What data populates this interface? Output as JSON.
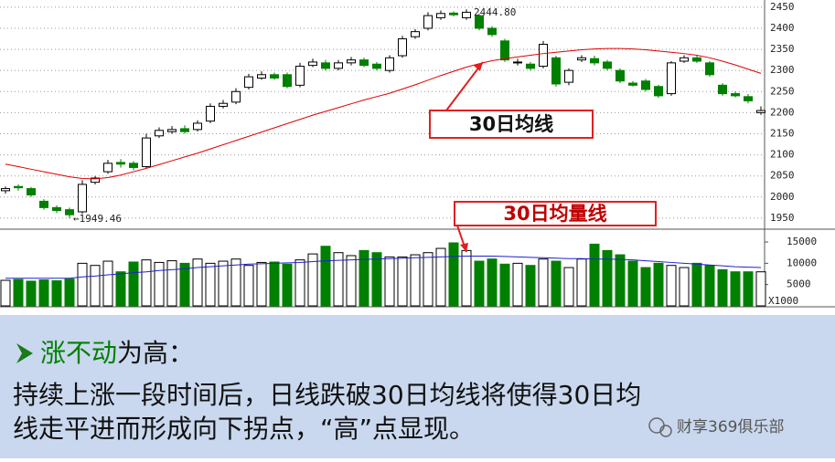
{
  "chart_data": [
    {
      "type": "candlestick",
      "ylim": [
        1926,
        2467
      ],
      "yticks": [
        1950,
        2000,
        2050,
        2100,
        2150,
        2200,
        2250,
        2300,
        2350,
        2400,
        2450
      ],
      "grid": true,
      "open": [
        2015,
        2025,
        2020,
        1990,
        1975,
        1970,
        1965,
        2035,
        2060,
        2082,
        2080,
        2072,
        2145,
        2155,
        2162,
        2160,
        2180,
        2215,
        2225,
        2260,
        2282,
        2290,
        2290,
        2265,
        2312,
        2318,
        2305,
        2318,
        2325,
        2315,
        2300,
        2335,
        2380,
        2400,
        2425,
        2436,
        2425,
        2430,
        2400,
        2370,
        2318,
        2315,
        2310,
        2330,
        2272,
        2325,
        2328,
        2320,
        2300,
        2270,
        2275,
        2262,
        2245,
        2322,
        2330,
        2318,
        2265,
        2245,
        2238,
        2200
      ],
      "high": [
        2025,
        2030,
        2024,
        1995,
        1980,
        1975,
        2040,
        2050,
        2088,
        2090,
        2085,
        2150,
        2165,
        2168,
        2170,
        2182,
        2222,
        2230,
        2258,
        2292,
        2298,
        2295,
        2295,
        2318,
        2328,
        2325,
        2325,
        2332,
        2330,
        2320,
        2336,
        2382,
        2398,
        2438,
        2442,
        2440,
        2444.8,
        2435,
        2405,
        2375,
        2328,
        2320,
        2370,
        2335,
        2305,
        2336,
        2335,
        2325,
        2305,
        2275,
        2280,
        2266,
        2322,
        2336,
        2336,
        2322,
        2270,
        2250,
        2244,
        2215
      ],
      "low": [
        2008,
        2015,
        2000,
        1970,
        1962,
        1949.46,
        1960,
        2030,
        2055,
        2070,
        2064,
        2068,
        2140,
        2150,
        2150,
        2155,
        2175,
        2210,
        2220,
        2255,
        2278,
        2278,
        2258,
        2260,
        2308,
        2300,
        2300,
        2312,
        2308,
        2300,
        2295,
        2330,
        2375,
        2395,
        2420,
        2428,
        2420,
        2395,
        2380,
        2320,
        2312,
        2300,
        2305,
        2262,
        2265,
        2320,
        2312,
        2300,
        2270,
        2262,
        2250,
        2235,
        2240,
        2318,
        2318,
        2285,
        2240,
        2236,
        2222,
        2195
      ],
      "close": [
        2020,
        2022,
        2005,
        1975,
        1968,
        1958,
        2030,
        2045,
        2080,
        2078,
        2070,
        2140,
        2158,
        2160,
        2155,
        2175,
        2215,
        2222,
        2250,
        2285,
        2290,
        2282,
        2262,
        2310,
        2320,
        2305,
        2318,
        2325,
        2312,
        2305,
        2330,
        2375,
        2392,
        2430,
        2435,
        2432,
        2438,
        2400,
        2385,
        2325,
        2320,
        2305,
        2362,
        2268,
        2300,
        2330,
        2318,
        2305,
        2275,
        2265,
        2255,
        2240,
        2318,
        2330,
        2322,
        2290,
        2245,
        2240,
        2228,
        2205
      ],
      "ma30": {
        "color": "#e00000",
        "values": [
          2078,
          2072,
          2066,
          2060,
          2054,
          2048,
          2044,
          2043,
          2046,
          2052,
          2060,
          2068,
          2077,
          2086,
          2095,
          2104,
          2114,
          2124,
          2134,
          2144,
          2154,
          2164,
          2174,
          2184,
          2194,
          2203,
          2212,
          2221,
          2230,
          2238,
          2246,
          2256,
          2266,
          2277,
          2288,
          2298,
          2308,
          2316,
          2323,
          2328,
          2332,
          2336,
          2340,
          2343,
          2346,
          2349,
          2351,
          2352,
          2352,
          2351,
          2349,
          2346,
          2343,
          2340,
          2336,
          2330,
          2322,
          2313,
          2303,
          2293
        ]
      },
      "up_color": "#ffffff",
      "down_color": "#008000",
      "peak_label": "2444.80",
      "trough_label": "←1949.46",
      "callout": "30日均线"
    },
    {
      "type": "bar",
      "ylim": [
        0,
        17800
      ],
      "yticks": [
        5000,
        10000,
        15000
      ],
      "unit_label": "X1000",
      "values": [
        6000,
        6200,
        5800,
        6100,
        5900,
        6300,
        10000,
        9500,
        10500,
        8000,
        10300,
        10800,
        10200,
        10600,
        10000,
        11000,
        10000,
        10500,
        11000,
        9500,
        10200,
        10300,
        9800,
        10800,
        12200,
        14000,
        12500,
        11800,
        13000,
        12500,
        11500,
        11500,
        12000,
        12500,
        13500,
        14800,
        13000,
        10500,
        11000,
        9800,
        10000,
        9500,
        11000,
        10500,
        9000,
        11000,
        14500,
        13000,
        12000,
        10500,
        9000,
        10000,
        9500,
        9000,
        10000,
        9500,
        8500,
        8000,
        8000,
        8000
      ],
      "ma30": {
        "color": "#2020d0",
        "values": [
          6500,
          6500,
          6500,
          6500,
          6500,
          6500,
          6800,
          7000,
          7300,
          7500,
          7800,
          8000,
          8300,
          8500,
          8700,
          9000,
          9200,
          9400,
          9600,
          9800,
          9900,
          10000,
          10100,
          10200,
          10400,
          10600,
          10700,
          10800,
          10900,
          11000,
          11100,
          11200,
          11300,
          11400,
          11500,
          11600,
          11700,
          11700,
          11700,
          11600,
          11500,
          11400,
          11300,
          11200,
          11100,
          11100,
          11000,
          11000,
          10900,
          10800,
          10600,
          10400,
          10200,
          10000,
          9800,
          9600,
          9400,
          9200,
          9100,
          9000
        ]
      },
      "callout": "30日均量线"
    }
  ],
  "text_panel": {
    "heading_key": "涨不动",
    "heading_rest": "为高：",
    "lines": [
      "持续上涨一段时间后，日线跌破30日均线将使得30日均",
      "线走平进而形成向下拐点，“高”点显现。"
    ],
    "watermark": "财享369俱乐部"
  }
}
